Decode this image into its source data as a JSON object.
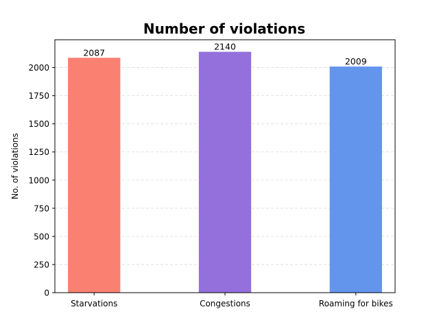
{
  "chart_data": {
    "type": "bar",
    "title": "Number of violations",
    "xlabel": "",
    "ylabel": "No. of violations",
    "categories": [
      "Starvations",
      "Congestions",
      "Roaming for bikes"
    ],
    "values": [
      2087,
      2140,
      2009
    ],
    "data_labels": [
      "2087",
      "2140",
      "2009"
    ],
    "colors": [
      "#fa8072",
      "#9370db",
      "#6495ed"
    ],
    "ylim": [
      0,
      2247
    ],
    "yticks": [
      0,
      250,
      500,
      750,
      1000,
      1250,
      1500,
      1750,
      2000
    ],
    "ytick_labels": [
      "0",
      "250",
      "500",
      "750",
      "1000",
      "1250",
      "1500",
      "1750",
      "2000"
    ],
    "grid": "horizontal dashed",
    "legend": "none"
  }
}
